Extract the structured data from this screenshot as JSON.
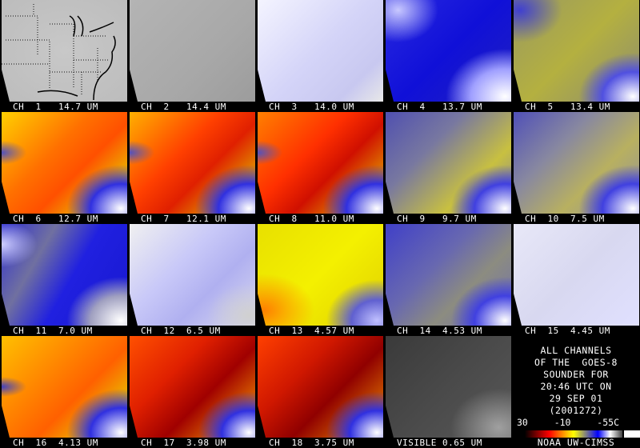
{
  "panels": [
    {
      "label": "CH  1   14.7 UM",
      "palette": "light-gray",
      "bg": "radial-gradient(ellipse at 50% 50%,#c8c8c8,#bcbcbc)"
    },
    {
      "label": "CH  2   14.4 UM",
      "palette": "gray",
      "bg": "linear-gradient(135deg,#b4b4b4,#a8a8a8 60%,#9c9c9c)"
    },
    {
      "label": "CH  3   14.0 UM",
      "palette": "pale-lavender",
      "bg": "linear-gradient(135deg,#f4f4ff,#d4d4f8 50%,#c8c8f0 80%,#e8e8e8)"
    },
    {
      "label": "CH  4   13.7 UM",
      "palette": "blue",
      "bg": "radial-gradient(ellipse at 10% 10%,#c8c8ff 0%,transparent 25%),radial-gradient(ellipse at 95% 95%,#ffffff 0%,#a0a0ff 20%,transparent 35%),linear-gradient(135deg,#2828e0,#1010d8 50%,#2020c0)"
    },
    {
      "label": "CH  5   13.4 UM",
      "palette": "olive",
      "bg": "radial-gradient(ellipse at 95% 95%,#ffffff 0%,#5050e0 18%,transparent 32%),radial-gradient(ellipse at 5% 10%,#4040d0 0%,transparent 25%),linear-gradient(135deg,#9a9a60,#b4b040 50%,#8c8c70)"
    },
    {
      "label": "CH  6   12.7 UM",
      "palette": "orange-yellow",
      "bg": "radial-gradient(ellipse at 95% 95%,#ffffff 0%,#3030e0 18%,transparent 32%),radial-gradient(ellipse at 0% 40%,#5050c0 0%,transparent 14%),linear-gradient(135deg,#ffd000,#ff7000 40%,#ff5000 60%,#e8c000 85%)"
    },
    {
      "label": "CH  7   12.1 UM",
      "palette": "red-orange",
      "bg": "radial-gradient(ellipse at 95% 95%,#ffffff 0%,#3030e0 18%,transparent 32%),radial-gradient(ellipse at 0% 40%,#5050c0 0%,transparent 14%),linear-gradient(135deg,#ffb000,#ff4000 40%,#e02000 60%,#e0a000 85%)"
    },
    {
      "label": "CH  8   11.0 UM",
      "palette": "red",
      "bg": "radial-gradient(ellipse at 95% 95%,#ffffff 0%,#3030e0 18%,transparent 32%),radial-gradient(ellipse at 0% 40%,#5050c0 0%,transparent 14%),linear-gradient(135deg,#ff8000,#ff3000 40%,#d01000 60%,#e09000 85%)"
    },
    {
      "label": "CH  9   9.7 UM",
      "palette": "olive-blue",
      "bg": "radial-gradient(ellipse at 95% 95%,#ffffff 0%,#4040e0 18%,transparent 32%),linear-gradient(135deg,#5050b0,#7878a0 35%,#c8c040 70%,#8080a0)"
    },
    {
      "label": "CH  10  7.5 UM",
      "palette": "olive-blue",
      "bg": "radial-gradient(ellipse at 95% 95%,#ffffff 0%,#4040e0 18%,transparent 32%),linear-gradient(135deg,#5050b8,#8888a0 35%,#b8b060 65%,#9090a0)"
    },
    {
      "label": "CH  11  7.0 UM",
      "palette": "blue-gray",
      "bg": "radial-gradient(ellipse at 95% 95%,#ffffff 0%,#a0a0c0 18%,transparent 32%),radial-gradient(ellipse at 0% 20%,#d0d0ff 0%,transparent 20%),linear-gradient(120deg,#3030d0,#7070a0 30%,#2020e0 55%,#1818d0)"
    },
    {
      "label": "CH  12  6.5 UM",
      "palette": "white-lavender",
      "bg": "radial-gradient(ellipse at 95% 90%,#d0d0d0 0%,transparent 25%),linear-gradient(135deg,#f0f0f0,#c8c8f8 40%,#b0b0f0 65%,#d8d8f0)"
    },
    {
      "label": "CH  13  4.57 UM",
      "palette": "yellow",
      "bg": "radial-gradient(ellipse at 95% 95%,#c0c0ff 0%,#6060d0 15%,transparent 30%),radial-gradient(ellipse at 5% 85%,#ff8000 0%,transparent 30%),linear-gradient(135deg,#e8e000,#f4f000 50%,#e0d000)"
    },
    {
      "label": "CH  14  4.53 UM",
      "palette": "blue-olive",
      "bg": "radial-gradient(ellipse at 95% 95%,#ffffff 0%,#4040e0 18%,transparent 32%),linear-gradient(135deg,#4040c8,#6868b0 40%,#8c8c80 65%,#7070b0)"
    },
    {
      "label": "CH  15  4.45 UM",
      "palette": "white-noise",
      "bg": "linear-gradient(135deg,#e8e8f8,#d8d8f0 50%,#e0e0ff)"
    },
    {
      "label": "CH  16  4.13 UM",
      "palette": "orange-yellow",
      "bg": "radial-gradient(ellipse at 95% 95%,#ffffff 0%,#3030e0 18%,transparent 32%),radial-gradient(ellipse at 0% 50%,#4040c0 0%,transparent 14%),linear-gradient(135deg,#ffc000,#ff8000 40%,#ff6000 60%,#e8c000 85%)"
    },
    {
      "label": "CH  17  3.98 UM",
      "palette": "dark-red",
      "bg": "radial-gradient(ellipse at 95% 95%,#ffffff 0%,#3030e0 16%,transparent 30%),linear-gradient(135deg,#ff5000,#e02000 35%,#a00000 60%,#e07000 85%)"
    },
    {
      "label": "CH  18  3.75 UM",
      "palette": "dark-red",
      "bg": "radial-gradient(ellipse at 95% 95%,#ffffff 0%,#3030e0 16%,transparent 30%),linear-gradient(135deg,#ff4000,#d01800 35%,#900000 60%,#d06000 85%)"
    },
    {
      "label": "VISIBLE 0.65 UM",
      "palette": "dark-gray",
      "bg": "radial-gradient(ellipse at 90% 90%,#a0a0a0 0%,transparent 30%),linear-gradient(135deg,#3a3a3a,#4a4a4a 50%,#585858)"
    }
  ],
  "info": {
    "lines": [
      "ALL CHANNELS",
      "OF THE  GOES-8",
      "SOUNDER FOR",
      "20:46 UTC ON",
      "29 SEP 01",
      "(2001272)"
    ],
    "scale_labels": [
      "30",
      "-10",
      "-55C"
    ],
    "credit": "NOAA UW-CIMSS",
    "colorbar": [
      "#000000",
      "#800000",
      "#ff0000",
      "#ff8000",
      "#ffff00",
      "#808080",
      "#0000ff",
      "#ffffff",
      "#404040"
    ]
  }
}
